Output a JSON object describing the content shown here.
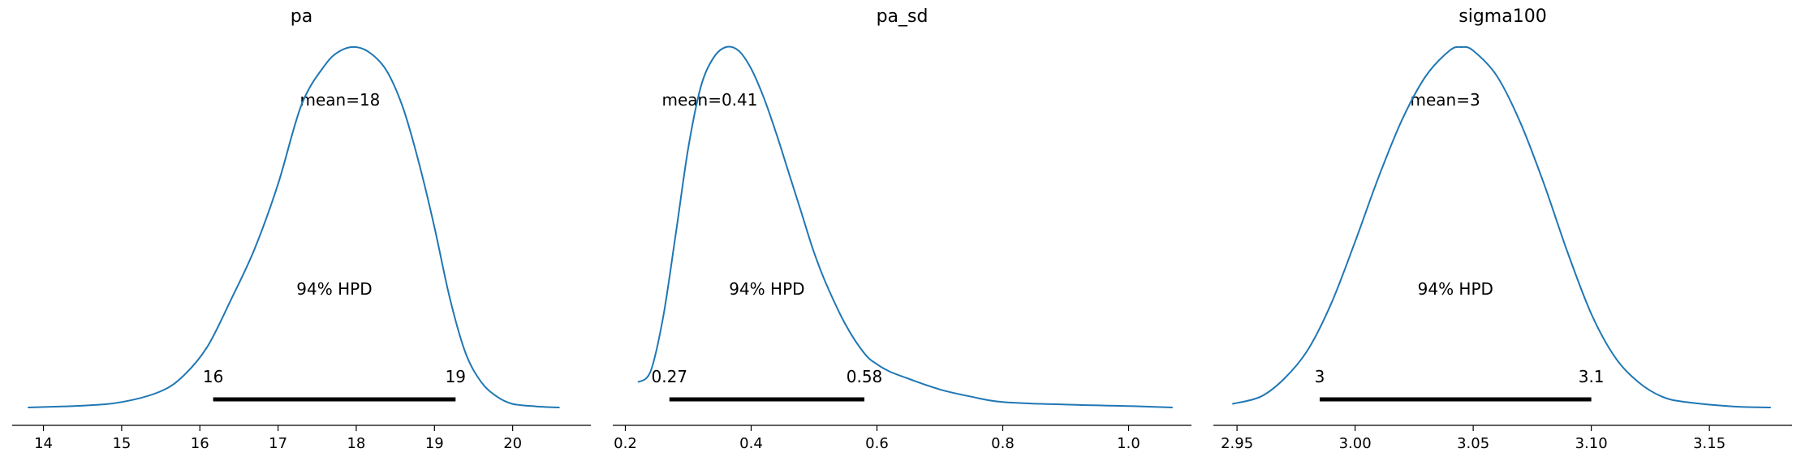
{
  "chart_data": [
    {
      "type": "line",
      "title": "pa",
      "mean_label": "mean=18",
      "hpd_label": "94% HPD",
      "hpd_low_label": "16",
      "hpd_high_label": "19",
      "hpd_interval": [
        16.17,
        19.27
      ],
      "xlim": [
        13.6,
        21.0
      ],
      "xticks": [
        14,
        15,
        16,
        17,
        18,
        19,
        20
      ],
      "xtick_labels": [
        "14",
        "15",
        "16",
        "17",
        "18",
        "19",
        "20"
      ],
      "ylim": [
        0,
        1.0
      ],
      "series": [
        {
          "x": [
            13.8,
            14.5,
            15.0,
            15.5,
            15.8,
            16.1,
            16.4,
            16.7,
            17.0,
            17.3,
            17.6,
            17.8,
            18.0,
            18.2,
            18.4,
            18.6,
            18.8,
            19.0,
            19.2,
            19.4,
            19.6,
            19.8,
            20.0,
            20.3,
            20.6
          ],
          "y": [
            0.0,
            0.005,
            0.015,
            0.045,
            0.09,
            0.17,
            0.3,
            0.44,
            0.62,
            0.84,
            0.95,
            0.99,
            1.0,
            0.98,
            0.93,
            0.83,
            0.68,
            0.5,
            0.3,
            0.15,
            0.07,
            0.03,
            0.01,
            0.003,
            0.0
          ]
        }
      ]
    },
    {
      "type": "line",
      "title": "pa_sd",
      "mean_label": "mean=0.41",
      "hpd_label": "94% HPD",
      "hpd_low_label": "0.27",
      "hpd_high_label": "0.58",
      "hpd_interval": [
        0.27,
        0.58
      ],
      "xlim": [
        0.18,
        1.1
      ],
      "xticks": [
        0.2,
        0.4,
        0.6,
        0.8,
        1.0
      ],
      "xtick_labels": [
        "0.2",
        "0.4",
        "0.6",
        "0.8",
        "1.0"
      ],
      "ylim": [
        0,
        1.0
      ],
      "series": [
        {
          "x": [
            0.22,
            0.24,
            0.26,
            0.28,
            0.3,
            0.32,
            0.34,
            0.36,
            0.38,
            0.4,
            0.42,
            0.44,
            0.46,
            0.48,
            0.5,
            0.52,
            0.55,
            0.58,
            0.6,
            0.62,
            0.65,
            0.7,
            0.75,
            0.8,
            0.9,
            1.0,
            1.07
          ],
          "y": [
            0.07,
            0.1,
            0.25,
            0.48,
            0.72,
            0.89,
            0.97,
            1.0,
            0.99,
            0.94,
            0.86,
            0.76,
            0.65,
            0.54,
            0.43,
            0.34,
            0.23,
            0.15,
            0.12,
            0.1,
            0.08,
            0.05,
            0.03,
            0.015,
            0.008,
            0.004,
            0.0
          ]
        }
      ]
    },
    {
      "type": "line",
      "title": "sigma100",
      "mean_label": "mean=3",
      "hpd_label": "94% HPD",
      "hpd_low_label": "3",
      "hpd_high_label": "3.1",
      "hpd_interval": [
        2.985,
        3.1
      ],
      "xlim": [
        2.94,
        3.185
      ],
      "xticks": [
        2.95,
        3.0,
        3.05,
        3.1,
        3.15
      ],
      "xtick_labels": [
        "2.95",
        "3.00",
        "3.05",
        "3.10",
        "3.15"
      ],
      "ylim": [
        0,
        1.0
      ],
      "series": [
        {
          "x": [
            2.948,
            2.96,
            2.97,
            2.98,
            2.99,
            3.0,
            3.01,
            3.02,
            3.03,
            3.04,
            3.045,
            3.05,
            3.06,
            3.07,
            3.08,
            3.09,
            3.1,
            3.11,
            3.12,
            3.13,
            3.14,
            3.16,
            3.176
          ],
          "y": [
            0.01,
            0.03,
            0.08,
            0.16,
            0.29,
            0.46,
            0.64,
            0.8,
            0.92,
            0.99,
            1.0,
            0.99,
            0.92,
            0.79,
            0.62,
            0.43,
            0.26,
            0.14,
            0.07,
            0.03,
            0.015,
            0.003,
            0.0
          ]
        }
      ]
    }
  ]
}
